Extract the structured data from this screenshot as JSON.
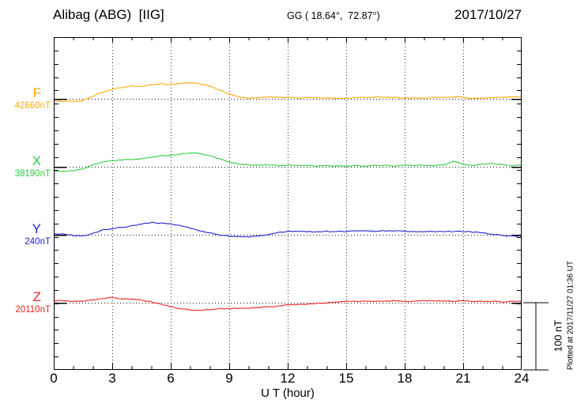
{
  "header": {
    "station": "Alibag (ABG)  [IIG]",
    "coordinates": "GG ( 18.64°,  72.87°)",
    "date": "2017/10/27"
  },
  "axis": {
    "x_label": "U T (hour)",
    "x_tick_labels": [
      "0",
      "3",
      "6",
      "9",
      "12",
      "15",
      "18",
      "21",
      "24"
    ]
  },
  "annotations": {
    "scale_bar_label": "100 nT",
    "plotted_at": "Plotted at 2017/11/27 01:36 UT"
  },
  "chart_data": {
    "type": "line",
    "xlabel": "U T (hour)",
    "x_unit": "hour",
    "x_range": [
      0,
      24
    ],
    "x_ticks": [
      0,
      3,
      6,
      9,
      12,
      15,
      18,
      21,
      24
    ],
    "grid_hours": [
      3,
      6,
      9,
      12,
      15,
      18,
      21
    ],
    "grid": "vertical-dotted-every-3h, dotted-zero-baseline-per-trace",
    "sample_step_hours": 0.5,
    "scale_bar_nT": 100,
    "series": [
      {
        "component": "F",
        "baseline_nT": 42660,
        "baseline_label": "42660nT",
        "color": "#FFAA00",
        "deviation_nT": [
          -3,
          -4,
          -4,
          -3,
          4,
          10,
          14,
          17,
          19,
          19,
          21,
          22,
          21,
          23,
          24,
          22,
          19,
          13,
          7,
          3,
          1,
          2,
          3,
          2,
          2,
          1,
          2,
          1,
          2,
          1,
          1,
          2,
          2,
          3,
          2,
          2,
          1,
          1,
          1,
          2,
          2,
          3,
          2,
          1,
          1,
          2,
          2,
          3,
          4
        ]
      },
      {
        "component": "X",
        "baseline_nT": 38190,
        "baseline_label": "38190nT",
        "color": "#2FCC40",
        "deviation_nT": [
          -7,
          -7,
          -6,
          -3,
          3,
          7,
          9,
          10,
          11,
          12,
          14,
          16,
          17,
          19,
          21,
          20,
          16,
          12,
          7,
          4,
          3,
          2,
          3,
          2,
          2,
          2,
          2,
          1,
          2,
          1,
          1,
          2,
          1,
          2,
          2,
          1,
          2,
          2,
          2,
          2,
          3,
          8,
          4,
          2,
          4,
          5,
          3,
          2,
          3
        ]
      },
      {
        "component": "Y",
        "baseline_nT": 240,
        "baseline_label": "240nT",
        "color": "#2222CC",
        "deviation_nT": [
          2,
          1,
          -1,
          -2,
          2,
          7,
          9,
          11,
          13,
          16,
          18,
          17,
          16,
          14,
          10,
          6,
          3,
          0,
          -2,
          -3,
          -3,
          -2,
          0,
          3,
          5,
          5,
          5,
          4,
          5,
          5,
          5,
          6,
          6,
          5,
          6,
          6,
          5,
          5,
          4,
          5,
          5,
          5,
          5,
          4,
          3,
          1,
          -1,
          -2,
          -2
        ]
      },
      {
        "component": "Z",
        "baseline_nT": 20110,
        "baseline_label": "20110nT",
        "color": "#EE2222",
        "deviation_nT": [
          3,
          3,
          2,
          2,
          4,
          6,
          8,
          6,
          6,
          4,
          1,
          -2,
          -6,
          -9,
          -11,
          -11,
          -10,
          -9,
          -9,
          -8,
          -8,
          -7,
          -6,
          -5,
          -3,
          -3,
          -2,
          -1,
          0,
          1,
          2,
          2,
          2,
          2,
          2,
          3,
          2,
          2,
          3,
          3,
          3,
          2,
          3,
          2,
          2,
          2,
          1,
          2,
          2
        ]
      }
    ]
  }
}
